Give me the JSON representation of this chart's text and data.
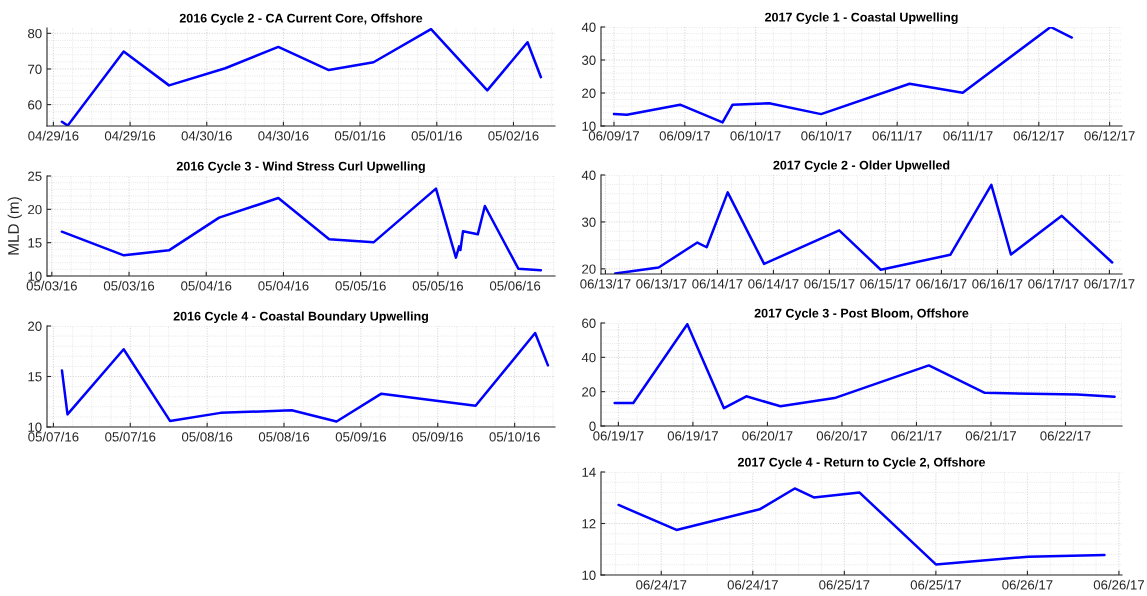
{
  "chart_data": [
    {
      "type": "line",
      "title": "2016 Cycle 2 - CA Current Core, Offshore",
      "grid": true,
      "x": [
        "2016-04-29T01:20",
        "2016-04-29T02:14",
        "2016-04-29T11:00",
        "2016-04-29T18:06",
        "2016-04-30T02:54",
        "2016-04-30T11:12",
        "2016-04-30T19:06",
        "2016-05-01T02:06",
        "2016-05-01T11:06",
        "2016-05-01T19:54",
        "2016-05-02T02:12",
        "2016-05-02T04:18"
      ],
      "series": [
        {
          "color": "#0000ff",
          "values": [
            55.2,
            54.1,
            74.9,
            65.4,
            70.2,
            76.2,
            69.7,
            71.9,
            81.2,
            64.0,
            77.5,
            67.7
          ]
        }
      ],
      "xlim": [
        "2016-04-28T23:00",
        "2016-05-02T06:30"
      ],
      "ylim": [
        54,
        81.5
      ],
      "yticks": [
        60,
        70,
        80
      ],
      "xticks": [
        {
          "value": "2016-04-29T00:00",
          "label": "04/29/16"
        },
        {
          "value": "2016-04-29T12:00",
          "label": "04/29/16"
        },
        {
          "value": "2016-04-30T00:00",
          "label": "04/30/16"
        },
        {
          "value": "2016-04-30T12:00",
          "label": "04/30/16"
        },
        {
          "value": "2016-05-01T00:00",
          "label": "05/01/16"
        },
        {
          "value": "2016-05-01T12:00",
          "label": "05/01/16"
        },
        {
          "value": "2016-05-02T00:00",
          "label": "05/02/16"
        }
      ]
    },
    {
      "type": "line",
      "title": "2017 Cycle 1 - Coastal Upwelling",
      "grid": true,
      "x": [
        "2017-06-09T00:00",
        "2017-06-09T02:12",
        "2017-06-09T11:12",
        "2017-06-09T18:24",
        "2017-06-09T20:06",
        "2017-06-10T02:18",
        "2017-06-10T11:06",
        "2017-06-11T02:06",
        "2017-06-11T11:06",
        "2017-06-12T02:00",
        "2017-06-12T05:36"
      ],
      "series": [
        {
          "color": "#0000ff",
          "values": [
            13.6,
            13.4,
            16.45,
            11.1,
            16.45,
            16.9,
            13.6,
            22.8,
            20.1,
            40.0,
            36.8
          ]
        }
      ],
      "xlim": [
        "2017-06-08T21:48",
        "2017-06-12T14:06"
      ],
      "ylim": [
        10,
        40
      ],
      "yticks": [
        10,
        20,
        30,
        40
      ],
      "xticks": [
        {
          "value": "2017-06-09T00:00",
          "label": "06/09/17"
        },
        {
          "value": "2017-06-09T12:00",
          "label": "06/09/17"
        },
        {
          "value": "2017-06-10T00:00",
          "label": "06/10/17"
        },
        {
          "value": "2017-06-10T12:00",
          "label": "06/10/17"
        },
        {
          "value": "2017-06-11T00:00",
          "label": "06/11/17"
        },
        {
          "value": "2017-06-11T12:00",
          "label": "06/11/17"
        },
        {
          "value": "2017-06-12T00:00",
          "label": "06/12/17"
        },
        {
          "value": "2017-06-12T12:00",
          "label": "06/12/17"
        }
      ]
    },
    {
      "type": "line",
      "title": "2016 Cycle 3 - Wind Stress Curl Upwelling",
      "ylabel": "MLD (m)",
      "grid": true,
      "x": [
        "2016-05-03T01:33",
        "2016-05-03T11:12",
        "2016-05-03T18:12",
        "2016-05-04T02:00",
        "2016-05-04T11:12",
        "2016-05-04T19:06",
        "2016-05-05T02:00",
        "2016-05-05T11:42",
        "2016-05-05T14:48",
        "2016-05-05T15:18",
        "2016-05-05T15:30",
        "2016-05-05T15:54",
        "2016-05-05T18:12",
        "2016-05-05T19:18",
        "2016-05-06T00:30",
        "2016-05-06T04:00"
      ],
      "series": [
        {
          "color": "#0000ff",
          "values": [
            16.65,
            13.1,
            13.85,
            18.75,
            21.7,
            15.5,
            15.05,
            23.1,
            12.75,
            14.45,
            13.9,
            16.7,
            16.25,
            20.5,
            11.1,
            10.85
          ]
        }
      ],
      "xlim": [
        "2016-05-02T23:15",
        "2016-05-06T06:12"
      ],
      "ylim": [
        10,
        25
      ],
      "yticks": [
        10,
        15,
        20,
        25
      ],
      "xticks": [
        {
          "value": "2016-05-03T00:00",
          "label": "05/03/16"
        },
        {
          "value": "2016-05-03T12:00",
          "label": "05/03/16"
        },
        {
          "value": "2016-05-04T00:00",
          "label": "05/04/16"
        },
        {
          "value": "2016-05-04T12:00",
          "label": "05/04/16"
        },
        {
          "value": "2016-05-05T00:00",
          "label": "05/05/16"
        },
        {
          "value": "2016-05-05T12:00",
          "label": "05/05/16"
        },
        {
          "value": "2016-05-06T00:00",
          "label": "05/06/16"
        }
      ]
    },
    {
      "type": "line",
      "title": "2017 Cycle 2 - Older Upwelled",
      "grid": true,
      "x": [
        "2017-06-13T02:06",
        "2017-06-13T11:24",
        "2017-06-13T19:42",
        "2017-06-13T21:42",
        "2017-06-14T02:12",
        "2017-06-14T10:00",
        "2017-06-15T02:06",
        "2017-06-15T11:00",
        "2017-06-16T01:54",
        "2017-06-16T10:42",
        "2017-06-16T14:54",
        "2017-06-17T01:48",
        "2017-06-17T12:36"
      ],
      "series": [
        {
          "color": "#0000ff",
          "values": [
            19.0,
            20.3,
            25.6,
            24.6,
            36.3,
            21.05,
            28.2,
            19.8,
            23.0,
            37.9,
            23.05,
            31.3,
            21.35
          ]
        }
      ],
      "xlim": [
        "2017-06-12T23:03",
        "2017-06-17T14:42"
      ],
      "ylim": [
        18.9,
        40
      ],
      "yticks": [
        20,
        30,
        40
      ],
      "xticks": [
        {
          "value": "2017-06-13T00:00",
          "label": "06/13/17"
        },
        {
          "value": "2017-06-13T12:00",
          "label": "06/13/17"
        },
        {
          "value": "2017-06-14T00:00",
          "label": "06/14/17"
        },
        {
          "value": "2017-06-14T12:00",
          "label": "06/14/17"
        },
        {
          "value": "2017-06-15T00:00",
          "label": "06/15/17"
        },
        {
          "value": "2017-06-15T12:00",
          "label": "06/15/17"
        },
        {
          "value": "2017-06-16T00:00",
          "label": "06/16/17"
        },
        {
          "value": "2017-06-16T12:00",
          "label": "06/16/17"
        },
        {
          "value": "2017-06-17T00:00",
          "label": "06/17/17"
        },
        {
          "value": "2017-06-17T12:00",
          "label": "06/17/17"
        }
      ]
    },
    {
      "type": "line",
      "title": "2016 Cycle 4 - Coastal Boundary Upwelling",
      "grid": true,
      "x": [
        "2016-05-07T01:20",
        "2016-05-07T02:12",
        "2016-05-07T10:58",
        "2016-05-07T18:12",
        "2016-05-08T02:06",
        "2016-05-08T13:12",
        "2016-05-08T20:12",
        "2016-05-09T03:12",
        "2016-05-09T17:54",
        "2016-05-10T03:12",
        "2016-05-10T05:12"
      ],
      "series": [
        {
          "color": "#0000ff",
          "values": [
            15.6,
            11.25,
            17.7,
            10.6,
            11.4,
            11.65,
            10.55,
            13.3,
            12.1,
            19.3,
            16.1
          ]
        }
      ],
      "xlim": [
        "2016-05-06T23:00",
        "2016-05-10T06:18"
      ],
      "ylim": [
        10,
        20
      ],
      "yticks": [
        10,
        15,
        20
      ],
      "xticks": [
        {
          "value": "2016-05-07T00:00",
          "label": "05/07/16"
        },
        {
          "value": "2016-05-07T12:00",
          "label": "05/07/16"
        },
        {
          "value": "2016-05-08T00:00",
          "label": "05/08/16"
        },
        {
          "value": "2016-05-08T12:00",
          "label": "05/08/16"
        },
        {
          "value": "2016-05-09T00:00",
          "label": "05/09/16"
        },
        {
          "value": "2016-05-09T12:00",
          "label": "05/09/16"
        },
        {
          "value": "2016-05-10T00:00",
          "label": "05/10/16"
        }
      ]
    },
    {
      "type": "line",
      "title": "2017 Cycle 3 - Post Bloom, Offshore",
      "grid": true,
      "x": [
        "2017-06-18T23:24",
        "2017-06-19T02:24",
        "2017-06-19T11:06",
        "2017-06-19T17:00",
        "2017-06-19T20:36",
        "2017-06-20T02:06",
        "2017-06-20T10:48",
        "2017-06-21T02:00",
        "2017-06-21T11:00",
        "2017-06-22T01:54",
        "2017-06-22T07:54"
      ],
      "series": [
        {
          "color": "#0000ff",
          "values": [
            13.4,
            13.4,
            59.3,
            10.4,
            17.3,
            11.5,
            16.25,
            35.3,
            19.3,
            18.4,
            17.1
          ]
        }
      ],
      "xlim": [
        "2017-06-18T21:12",
        "2017-06-22T09:06"
      ],
      "ylim": [
        0,
        60
      ],
      "yticks": [
        0,
        20,
        40,
        60
      ],
      "xticks": [
        {
          "value": "2017-06-19T00:00",
          "label": "06/19/17"
        },
        {
          "value": "2017-06-19T12:00",
          "label": "06/19/17"
        },
        {
          "value": "2017-06-20T00:00",
          "label": "06/20/17"
        },
        {
          "value": "2017-06-20T12:00",
          "label": "06/20/17"
        },
        {
          "value": "2017-06-21T00:00",
          "label": "06/21/17"
        },
        {
          "value": "2017-06-21T12:00",
          "label": "06/21/17"
        },
        {
          "value": "2017-06-22T00:00",
          "label": "06/22/17"
        }
      ]
    },
    {
      "type": "line",
      "title": "2017 Cycle 4 - Return to Cycle 2, Offshore",
      "grid": true,
      "x": [
        "2017-06-23T18:24",
        "2017-06-24T02:00",
        "2017-06-24T12:54",
        "2017-06-24T17:30",
        "2017-06-24T20:00",
        "2017-06-25T02:00",
        "2017-06-25T12:00",
        "2017-06-26T00:06",
        "2017-06-26T10:06"
      ],
      "series": [
        {
          "color": "#0000ff",
          "values": [
            12.72,
            11.75,
            12.55,
            13.36,
            13.01,
            13.2,
            10.41,
            10.71,
            10.78
          ]
        }
      ],
      "xlim": [
        "2017-06-23T16:06",
        "2017-06-26T12:24"
      ],
      "ylim": [
        10,
        14
      ],
      "yticks": [
        10,
        12,
        14
      ],
      "xticks": [
        {
          "value": "2017-06-24T00:00",
          "label": "06/24/17"
        },
        {
          "value": "2017-06-24T12:00",
          "label": "06/24/17"
        },
        {
          "value": "2017-06-25T00:00",
          "label": "06/25/17"
        },
        {
          "value": "2017-06-25T12:00",
          "label": "06/25/17"
        },
        {
          "value": "2017-06-26T00:00",
          "label": "06/26/17"
        },
        {
          "value": "2017-06-26T12:00",
          "label": "06/26/17"
        }
      ]
    }
  ]
}
